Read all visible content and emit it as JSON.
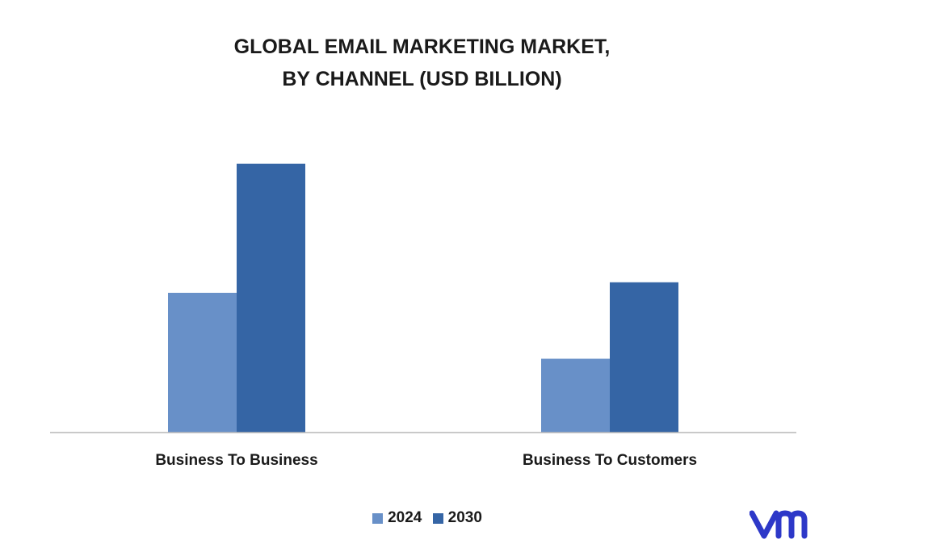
{
  "chart_data": {
    "type": "bar",
    "title_lines": [
      "GLOBAL EMAIL MARKETING MARKET,",
      "BY CHANNEL (USD BILLION)"
    ],
    "categories": [
      "Business To Business",
      "Business To Customers"
    ],
    "series": [
      {
        "name": "2024",
        "color": "#6890c8",
        "values": [
          5.3,
          2.8
        ]
      },
      {
        "name": "2030",
        "color": "#3565a5",
        "values": [
          10.2,
          5.7
        ]
      }
    ],
    "xlabel": "",
    "ylabel": "",
    "ylim": [
      0,
      12
    ],
    "grid": false,
    "legend_position": "bottom"
  },
  "logo": {
    "icon": "vmr-logo-icon",
    "color": "#2d38c8"
  }
}
